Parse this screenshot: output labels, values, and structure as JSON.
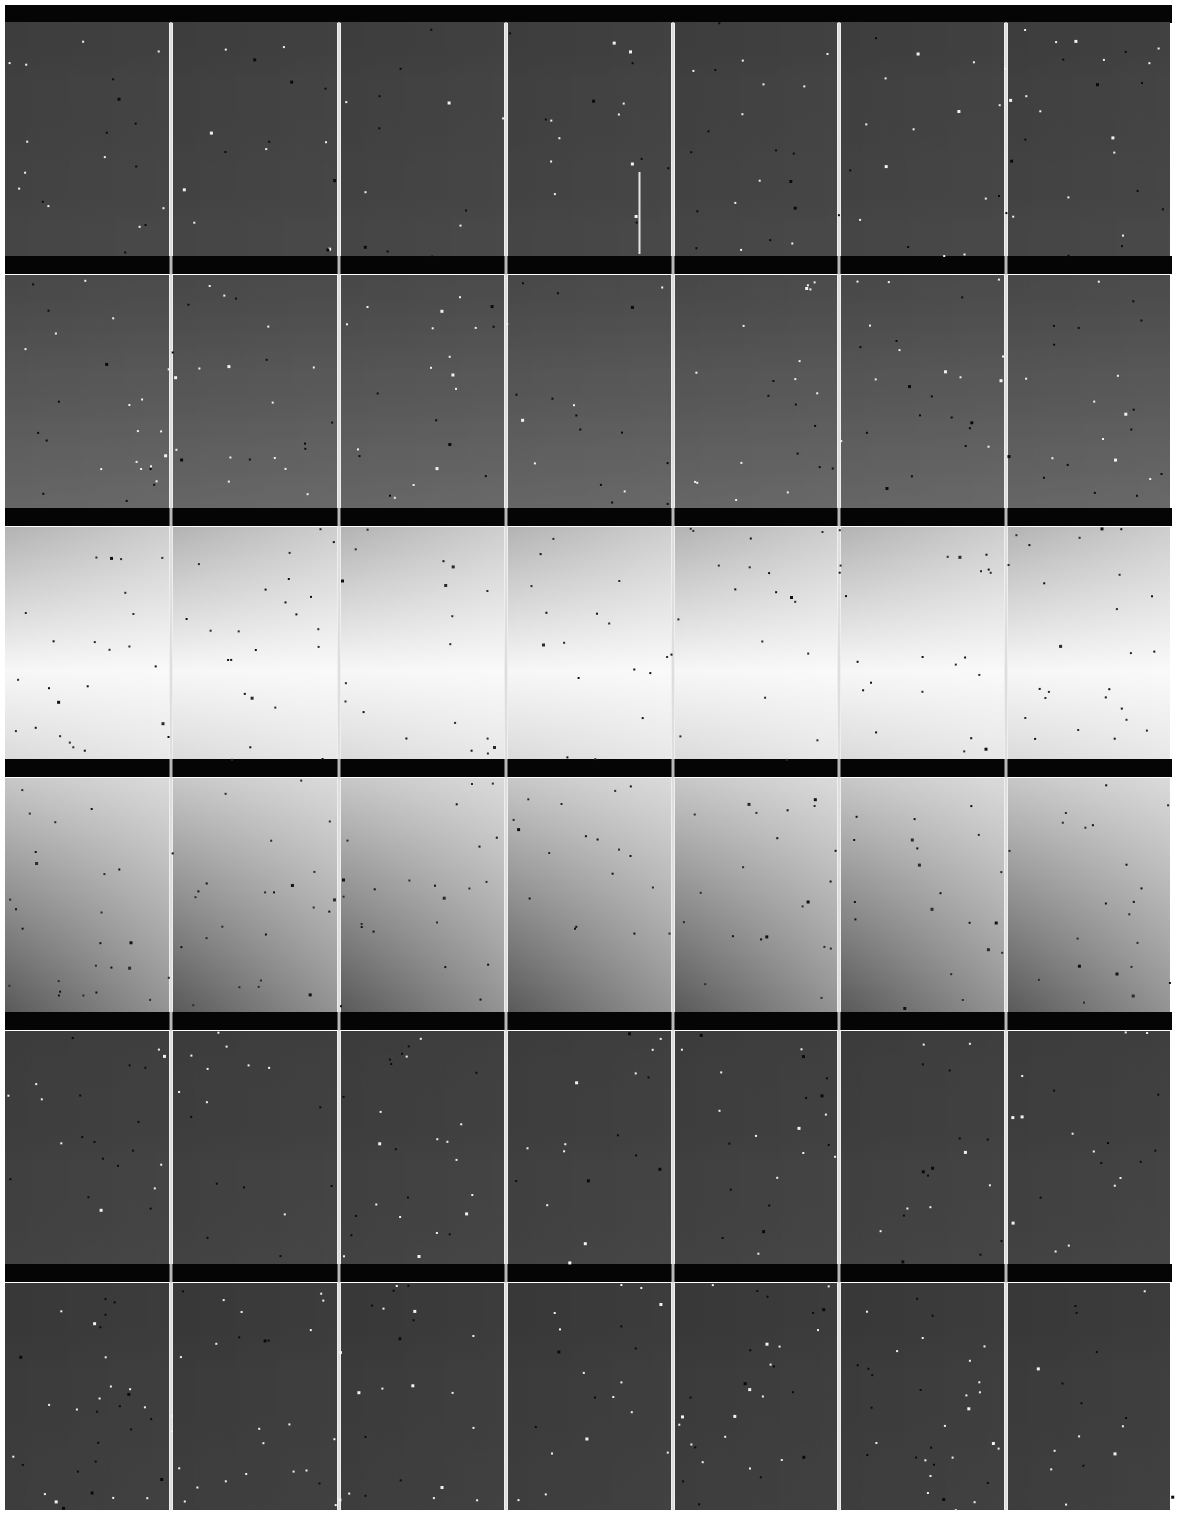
{
  "image": {
    "grid_rows": 6,
    "grid_columns": 7,
    "background_color": "#ffffff",
    "gap_color": "#050505",
    "seam_color": "#d8d8d8",
    "row_levels": [
      {
        "top": 0.24,
        "bottom": 0.27
      },
      {
        "top": 0.28,
        "bottom": 0.4
      },
      {
        "top": 0.7,
        "peak": 0.97,
        "bottom": 0.86
      },
      {
        "top": 0.78,
        "bottom": 0.35
      },
      {
        "top": 0.23,
        "bottom": 0.26
      },
      {
        "top": 0.22,
        "bottom": 0.24
      }
    ],
    "bright_side": "right"
  }
}
